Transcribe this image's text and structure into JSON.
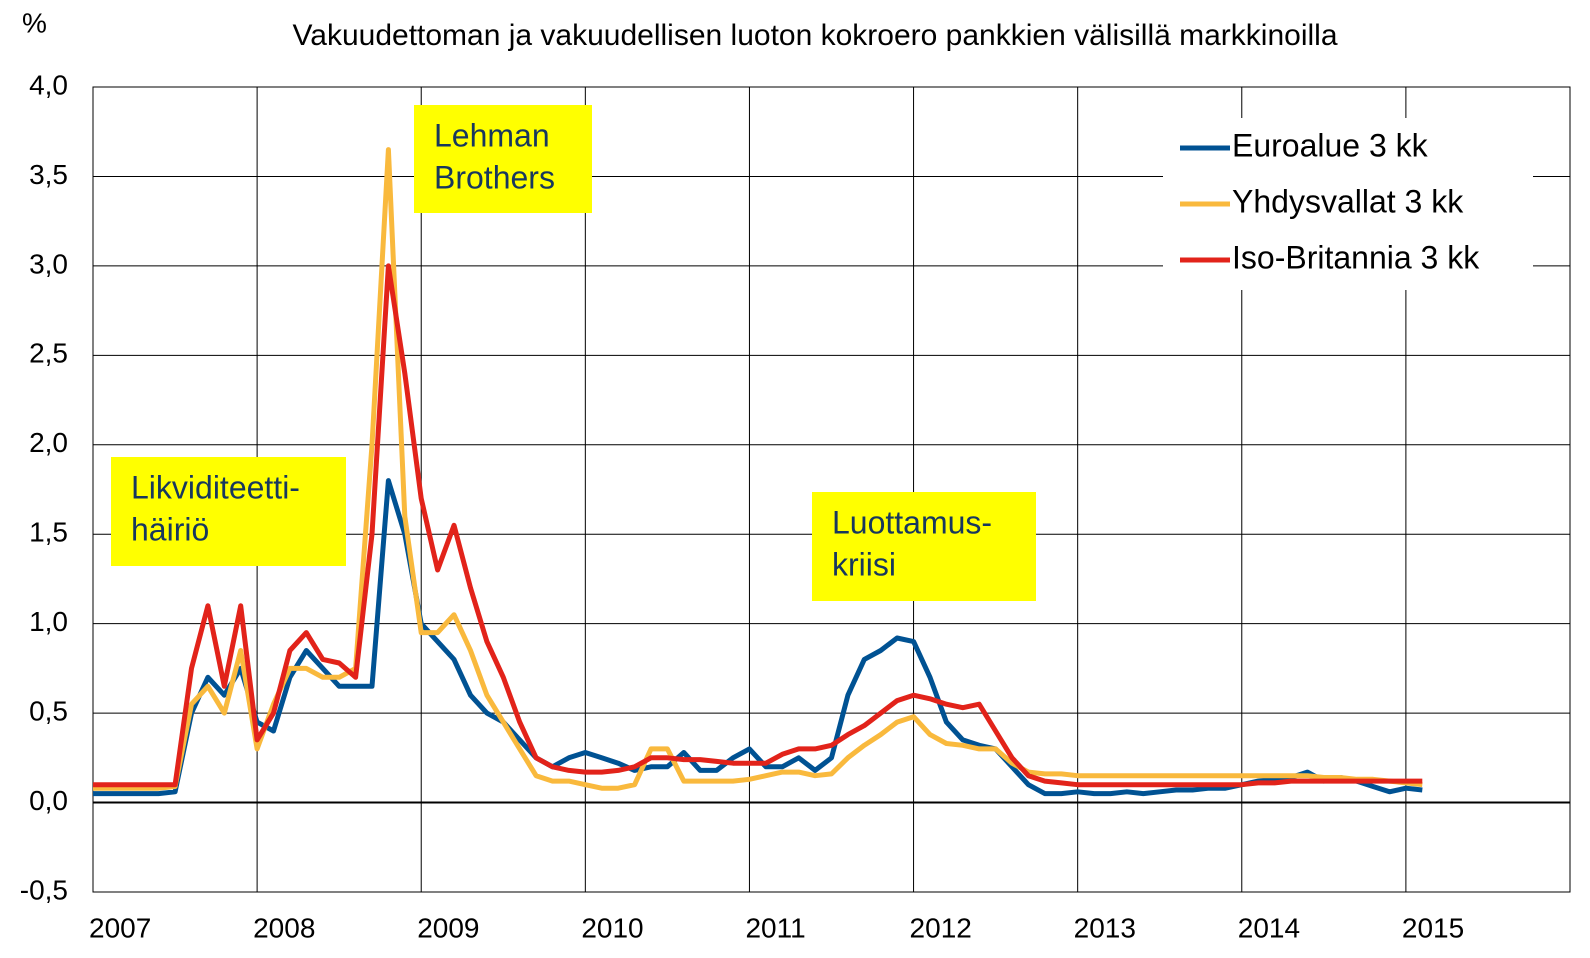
{
  "chart_data": {
    "type": "line",
    "title": "Vakuudettoman ja vakuudellisen luoton kokroero pankkien välisillä markkinoilla",
    "y_label": "%",
    "x": [
      2007.0,
      2007.1,
      2007.2,
      2007.3,
      2007.4,
      2007.5,
      2007.6,
      2007.7,
      2007.8,
      2007.9,
      2008.0,
      2008.1,
      2008.2,
      2008.3,
      2008.4,
      2008.5,
      2008.6,
      2008.7,
      2008.8,
      2008.9,
      2009.0,
      2009.1,
      2009.2,
      2009.3,
      2009.4,
      2009.5,
      2009.6,
      2009.7,
      2009.8,
      2009.9,
      2010.0,
      2010.1,
      2010.2,
      2010.3,
      2010.4,
      2010.5,
      2010.6,
      2010.7,
      2010.8,
      2010.9,
      2011.0,
      2011.1,
      2011.2,
      2011.3,
      2011.4,
      2011.5,
      2011.6,
      2011.7,
      2011.8,
      2011.9,
      2012.0,
      2012.1,
      2012.2,
      2012.3,
      2012.4,
      2012.5,
      2012.6,
      2012.7,
      2012.8,
      2012.9,
      2013.0,
      2013.1,
      2013.2,
      2013.3,
      2013.4,
      2013.5,
      2013.6,
      2013.7,
      2013.8,
      2013.9,
      2014.0,
      2014.1,
      2014.2,
      2014.3,
      2014.4,
      2014.5,
      2014.6,
      2014.7,
      2014.8,
      2014.9,
      2015.0,
      2015.1
    ],
    "series": [
      {
        "name": "Euroalue 3 kk",
        "color": "#005293",
        "values": [
          0.05,
          0.05,
          0.05,
          0.05,
          0.05,
          0.06,
          0.5,
          0.7,
          0.6,
          0.75,
          0.45,
          0.4,
          0.7,
          0.85,
          0.75,
          0.65,
          0.65,
          0.65,
          1.8,
          1.5,
          1.0,
          0.9,
          0.8,
          0.6,
          0.5,
          0.45,
          0.35,
          0.25,
          0.2,
          0.25,
          0.28,
          0.25,
          0.22,
          0.18,
          0.2,
          0.2,
          0.28,
          0.18,
          0.18,
          0.25,
          0.3,
          0.2,
          0.2,
          0.25,
          0.18,
          0.25,
          0.6,
          0.8,
          0.85,
          0.92,
          0.9,
          0.7,
          0.45,
          0.35,
          0.32,
          0.3,
          0.2,
          0.1,
          0.05,
          0.05,
          0.06,
          0.05,
          0.05,
          0.06,
          0.05,
          0.06,
          0.07,
          0.07,
          0.08,
          0.08,
          0.1,
          0.12,
          0.13,
          0.14,
          0.17,
          0.12,
          0.14,
          0.12,
          0.09,
          0.06,
          0.08,
          0.07
        ]
      },
      {
        "name": "Yhdysvallat 3 kk",
        "color": "#f9b93d",
        "values": [
          0.08,
          0.08,
          0.08,
          0.08,
          0.08,
          0.09,
          0.55,
          0.65,
          0.5,
          0.85,
          0.3,
          0.55,
          0.75,
          0.75,
          0.7,
          0.7,
          0.75,
          2.0,
          3.65,
          1.6,
          0.95,
          0.95,
          1.05,
          0.85,
          0.6,
          0.45,
          0.3,
          0.15,
          0.12,
          0.12,
          0.1,
          0.08,
          0.08,
          0.1,
          0.3,
          0.3,
          0.12,
          0.12,
          0.12,
          0.12,
          0.13,
          0.15,
          0.17,
          0.17,
          0.15,
          0.16,
          0.25,
          0.32,
          0.38,
          0.45,
          0.48,
          0.38,
          0.33,
          0.32,
          0.3,
          0.3,
          0.22,
          0.17,
          0.16,
          0.16,
          0.15,
          0.15,
          0.15,
          0.15,
          0.15,
          0.15,
          0.15,
          0.15,
          0.15,
          0.15,
          0.15,
          0.15,
          0.15,
          0.15,
          0.15,
          0.14,
          0.14,
          0.13,
          0.13,
          0.12,
          0.11,
          0.1
        ]
      },
      {
        "name": "Iso-Britannia 3 kk",
        "color": "#e2231a",
        "values": [
          0.1,
          0.1,
          0.1,
          0.1,
          0.1,
          0.1,
          0.75,
          1.1,
          0.65,
          1.1,
          0.35,
          0.5,
          0.85,
          0.95,
          0.8,
          0.78,
          0.7,
          1.5,
          3.0,
          2.4,
          1.7,
          1.3,
          1.55,
          1.2,
          0.9,
          0.7,
          0.45,
          0.25,
          0.2,
          0.18,
          0.17,
          0.17,
          0.18,
          0.2,
          0.25,
          0.25,
          0.24,
          0.24,
          0.23,
          0.22,
          0.22,
          0.22,
          0.27,
          0.3,
          0.3,
          0.32,
          0.38,
          0.43,
          0.5,
          0.57,
          0.6,
          0.58,
          0.55,
          0.53,
          0.55,
          0.4,
          0.25,
          0.15,
          0.12,
          0.11,
          0.1,
          0.1,
          0.1,
          0.1,
          0.1,
          0.1,
          0.1,
          0.1,
          0.1,
          0.1,
          0.1,
          0.11,
          0.11,
          0.12,
          0.12,
          0.12,
          0.12,
          0.12,
          0.12,
          0.12,
          0.12,
          0.12
        ]
      }
    ],
    "xlim": [
      2007,
      2016
    ],
    "xticks": [
      2007,
      2008,
      2009,
      2010,
      2011,
      2012,
      2013,
      2014,
      2015
    ],
    "ylim": [
      -0.5,
      4.0
    ],
    "yticks": [
      {
        "value": -0.5,
        "label": "-0,5"
      },
      {
        "value": 0,
        "label": "0,0"
      },
      {
        "value": 0.5,
        "label": "0,5"
      },
      {
        "value": 1.0,
        "label": "1,0"
      },
      {
        "value": 1.5,
        "label": "1,5"
      },
      {
        "value": 2.0,
        "label": "2,0"
      },
      {
        "value": 2.5,
        "label": "2,5"
      },
      {
        "value": 3.0,
        "label": "3,0"
      },
      {
        "value": 3.5,
        "label": "3,5"
      },
      {
        "value": 4.0,
        "label": "4,0"
      }
    ],
    "grid": true,
    "legend": "upper right",
    "annotations": [
      {
        "lines": [
          "Likviditeetti-",
          "häiriö"
        ],
        "color": "#ffff00"
      },
      {
        "lines": [
          "Lehman",
          "Brothers"
        ],
        "color": "#ffff00"
      },
      {
        "lines": [
          "Luottamus-",
          "kriisi"
        ],
        "color": "#ffff00"
      }
    ]
  }
}
